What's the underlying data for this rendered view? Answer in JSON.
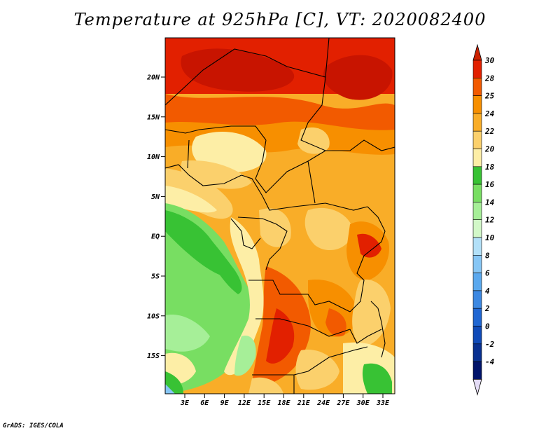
{
  "title": "Temperature at 925hPa [C], VT: 2020082400",
  "credit": "GrADS: IGES/COLA",
  "map": {
    "lat_labels": [
      "20N",
      "15N",
      "10N",
      "5N",
      "EQ",
      "5S",
      "10S",
      "15S"
    ],
    "lon_labels": [
      "3E",
      "6E",
      "9E",
      "12E",
      "15E",
      "18E",
      "21E",
      "24E",
      "27E",
      "30E",
      "33E"
    ]
  },
  "colorbar": {
    "labels": [
      "30",
      "28",
      "25",
      "24",
      "22",
      "20",
      "18",
      "16",
      "14",
      "12",
      "10",
      "8",
      "6",
      "4",
      "2",
      "0",
      "-2",
      "-4"
    ],
    "colors": [
      "#e22000",
      "#f25a00",
      "#f78f00",
      "#f9ad28",
      "#fbd06c",
      "#fdeea6",
      "#38c234",
      "#78de62",
      "#a6ef98",
      "#d2f8c8",
      "#b2e0f8",
      "#86c6f5",
      "#5aa8ee",
      "#3c88e2",
      "#1f66d2",
      "#0f4ab8",
      "#083090",
      "#00136a"
    ],
    "top_arrow_color": "#cc2200",
    "bottom_arrow_color": "#e4dcf6"
  }
}
